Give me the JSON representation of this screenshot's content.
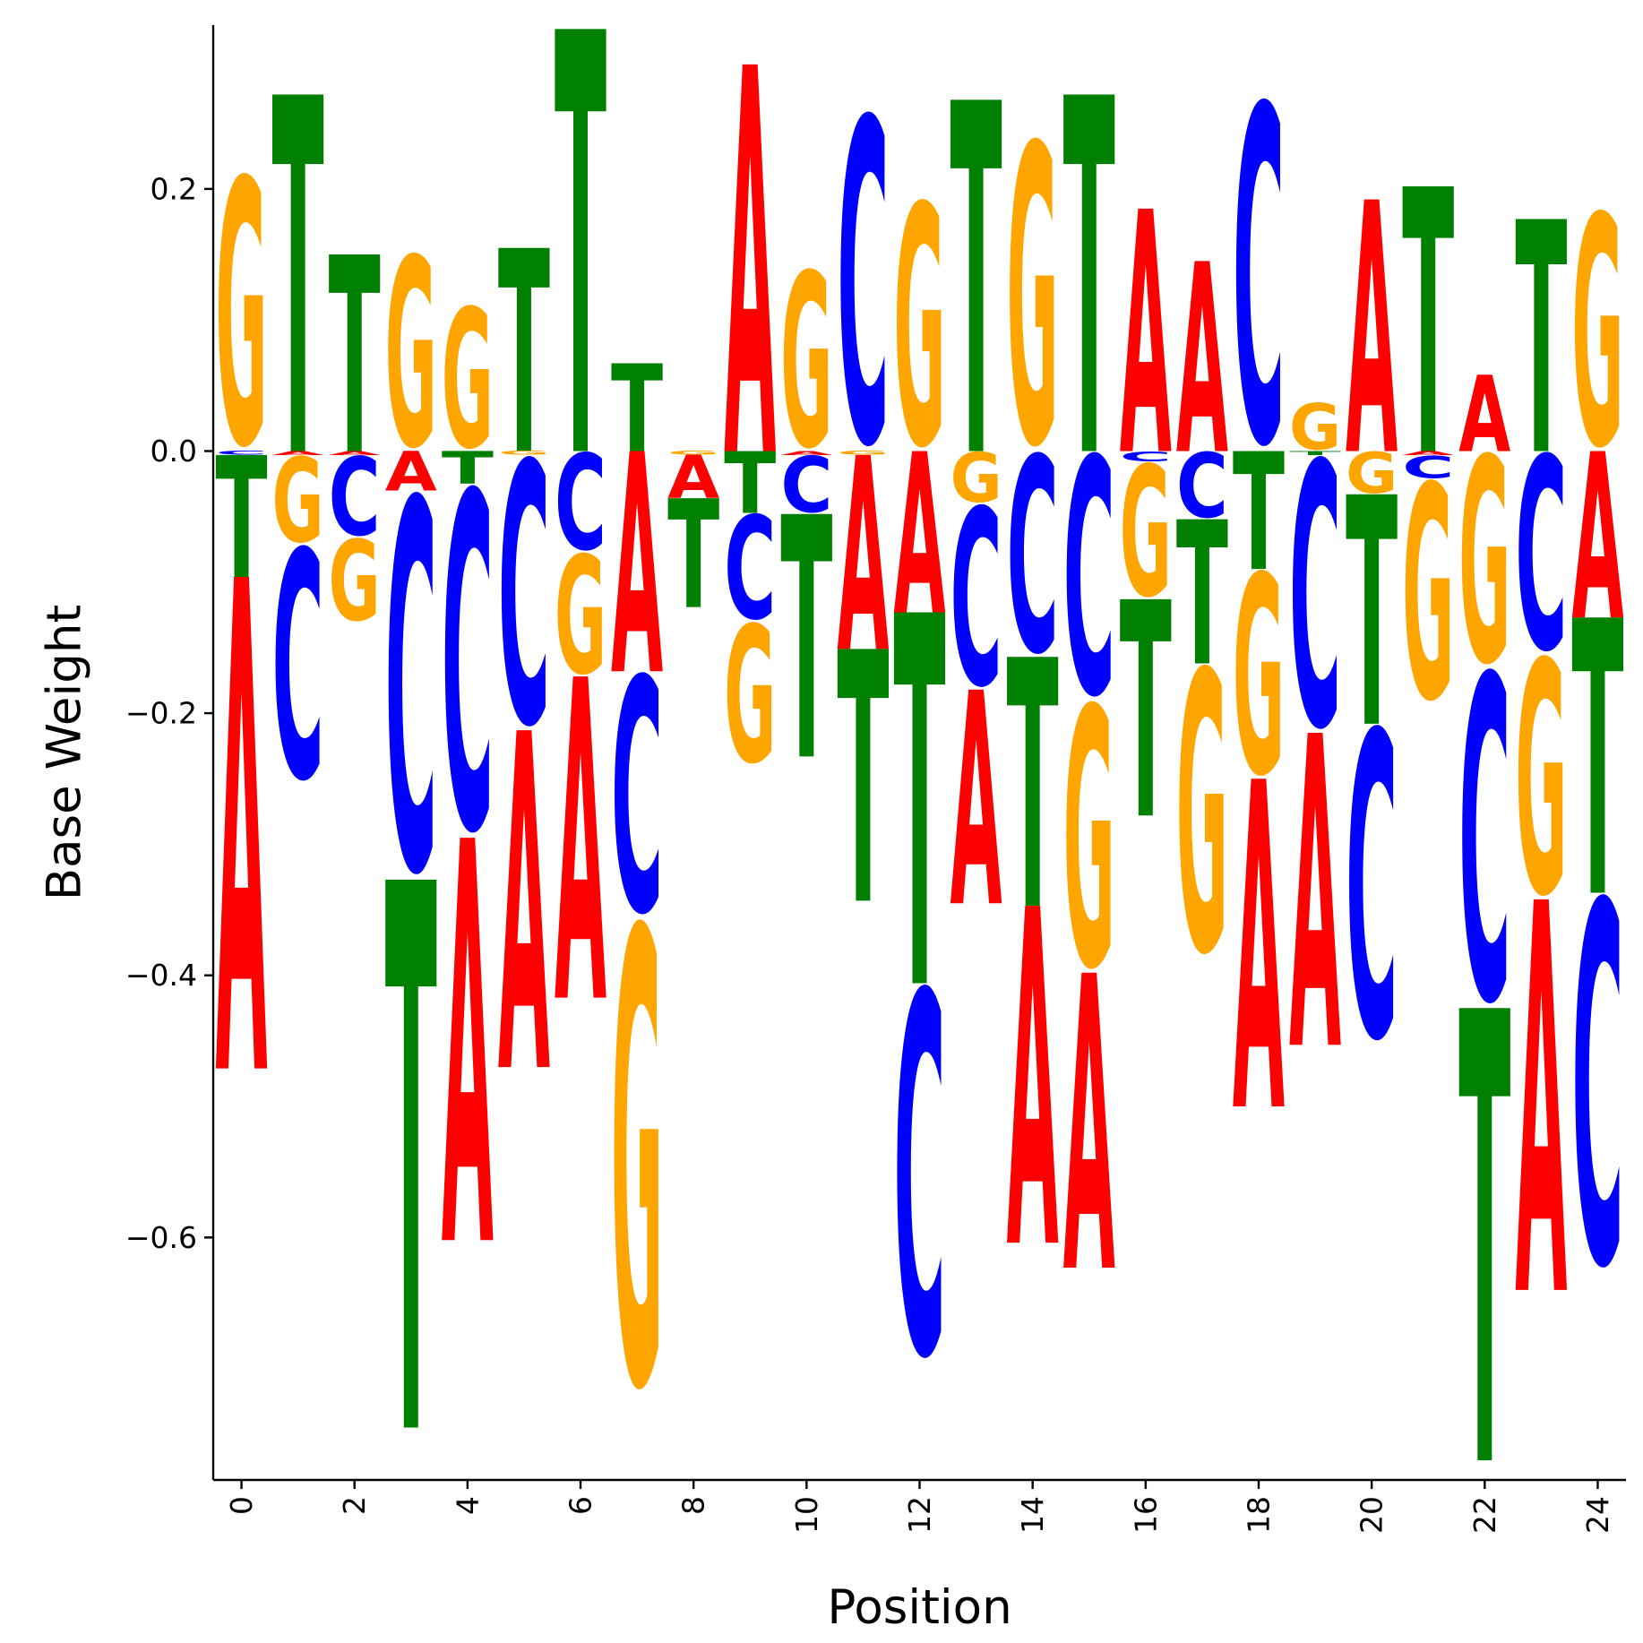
{
  "chart_data": {
    "type": "sequence-logo",
    "xlabel": "Position",
    "ylabel": "Base Weight",
    "xlim": [
      -0.5,
      24.5
    ],
    "ylim": [
      -0.785,
      0.325
    ],
    "xticks": [
      0,
      2,
      4,
      6,
      8,
      10,
      12,
      14,
      16,
      18,
      20,
      22,
      24
    ],
    "xtick_labels": [
      "0",
      "2",
      "4",
      "6",
      "8",
      "10",
      "12",
      "14",
      "16",
      "18",
      "20",
      "22",
      "24"
    ],
    "yticks": [
      -0.6,
      -0.4,
      -0.2,
      0.0,
      0.2
    ],
    "ytick_labels": [
      "−0.6",
      "−0.4",
      "−0.2",
      "0.0",
      "0.2"
    ],
    "grid": false,
    "colors": {
      "A": "#ff0000",
      "C": "#0000ff",
      "G": "#ffa500",
      "T": "#008000"
    },
    "positions": [
      {
        "A": -0.375,
        "C": -0.003,
        "G": 0.213,
        "T": -0.093
      },
      {
        "A": -0.003,
        "C": -0.183,
        "G": -0.068,
        "T": 0.272
      },
      {
        "A": -0.003,
        "C": -0.063,
        "G": -0.065,
        "T": 0.15
      },
      {
        "A": -0.03,
        "C": -0.297,
        "G": 0.152,
        "T": -0.418
      },
      {
        "A": -0.307,
        "C": -0.27,
        "G": 0.112,
        "T": -0.025
      },
      {
        "A": -0.257,
        "C": -0.21,
        "G": -0.003,
        "T": 0.155
      },
      {
        "A": -0.245,
        "C": -0.077,
        "G": -0.095,
        "T": 0.322
      },
      {
        "A": -0.168,
        "C": -0.188,
        "G": -0.365,
        "T": 0.067
      },
      {
        "A": -0.033,
        "C": 0.0,
        "G": -0.003,
        "T": -0.083
      },
      {
        "A": 0.295,
        "C": -0.083,
        "G": -0.11,
        "T": -0.047
      },
      {
        "A": -0.003,
        "C": -0.045,
        "G": 0.14,
        "T": -0.185
      },
      {
        "A": -0.148,
        "C": 0.26,
        "G": -0.003,
        "T": -0.192
      },
      {
        "A": -0.123,
        "C": -0.29,
        "G": 0.193,
        "T": -0.283
      },
      {
        "A": -0.163,
        "C": -0.142,
        "G": -0.04,
        "T": 0.268
      },
      {
        "A": -0.257,
        "C": -0.157,
        "G": 0.24,
        "T": -0.19
      },
      {
        "A": -0.225,
        "C": -0.19,
        "G": -0.208,
        "T": 0.272
      },
      {
        "A": 0.185,
        "C": -0.008,
        "G": -0.105,
        "T": -0.165
      },
      {
        "A": 0.145,
        "C": -0.052,
        "G": -0.225,
        "T": -0.11
      },
      {
        "A": -0.25,
        "C": 0.27,
        "G": -0.16,
        "T": -0.09
      },
      {
        "A": -0.238,
        "C": -0.212,
        "G": 0.037,
        "T": -0.003
      },
      {
        "A": 0.192,
        "C": -0.245,
        "G": -0.033,
        "T": -0.175
      },
      {
        "A": -0.003,
        "C": -0.018,
        "G": -0.172,
        "T": 0.202
      },
      {
        "A": 0.058,
        "C": -0.26,
        "G": -0.165,
        "T": -0.345
      },
      {
        "A": -0.298,
        "C": -0.155,
        "G": -0.187,
        "T": 0.177
      },
      {
        "A": -0.127,
        "C": -0.29,
        "G": 0.185,
        "T": -0.21
      }
    ]
  }
}
